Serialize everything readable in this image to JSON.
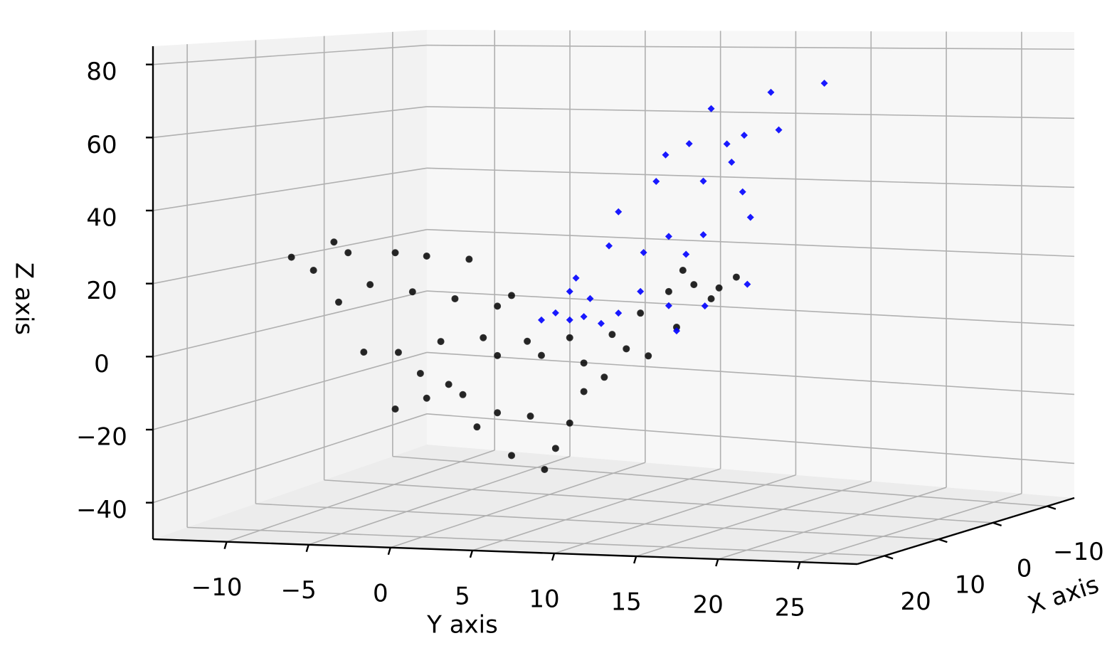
{
  "chart_data": {
    "type": "scatter3d",
    "xlabel": "X axis",
    "ylabel": "Y axis",
    "zlabel": "Z axis",
    "xlim": [
      -15,
      25
    ],
    "ylim": [
      -14.5,
      28.5
    ],
    "zlim": [
      -50,
      85
    ],
    "xticks": [
      {
        "value": -10,
        "label": "−10"
      },
      0,
      10,
      20
    ],
    "yticks": [
      {
        "value": -10,
        "label": "−10"
      },
      {
        "value": -5,
        "label": "−5"
      },
      0,
      5,
      10,
      15,
      20,
      25
    ],
    "zticks": [
      {
        "value": -40,
        "label": "−40"
      },
      {
        "value": -20,
        "label": "−20"
      },
      0,
      20,
      40,
      60,
      80
    ],
    "grid": true,
    "series": [
      {
        "color": "#000000",
        "marker": "circle",
        "x": [
          12,
          5,
          5,
          5,
          5,
          5,
          5,
          5,
          5,
          5,
          5,
          5,
          5,
          5,
          5,
          5,
          5,
          5,
          5,
          5,
          5,
          5,
          5,
          5,
          5,
          5,
          5,
          5,
          5,
          5,
          5,
          5,
          5,
          5,
          5,
          5,
          5,
          5,
          5,
          5,
          5,
          5,
          5,
          5,
          5,
          5,
          5
        ],
        "y": [
          -11.4,
          -11.7,
          -10.8,
          -13.0,
          -11.4,
          -7.8,
          -5.8,
          -3.1,
          -9.4,
          -6.7,
          -4.0,
          -1.3,
          -0.4,
          -9.8,
          -7.6,
          -4.9,
          -2.2,
          0.6,
          3.3,
          6.0,
          7.8,
          9.6,
          11.2,
          10.5,
          13.9,
          12.8,
          -1.3,
          1.5,
          4.2,
          6.9,
          -7.8,
          -5.8,
          -3.5,
          -1.3,
          0.8,
          -0.4,
          1.7,
          2.4,
          3.3,
          4.2,
          5.5,
          -2.6,
          -4.4,
          -6.2,
          8.3,
          10.1,
          12.3
        ],
        "z": [
          22.5,
          24.4,
          21.3,
          16.0,
          6.7,
          21.4,
          20.5,
          19.7,
          12.0,
          10.1,
          8.3,
          6.4,
          9.5,
          -7.8,
          -7.6,
          -4.1,
          -2.7,
          -3.4,
          -2.1,
          -0.9,
          5.2,
          11.3,
          13.3,
          17.2,
          15.5,
          12.5,
          -7.7,
          -7.3,
          -9.1,
          -4.8,
          -24.1,
          -20.6,
          -19.2,
          -24.0,
          -24.6,
          -36.0,
          -39.5,
          -33.4,
          -26.1,
          -17.1,
          -12.9,
          -28.3,
          -16.4,
          -13.5,
          -6.6,
          1.5,
          9.5
        ]
      },
      {
        "color": "#0000ff",
        "marker": "diamond",
        "x": [
          5,
          5,
          5,
          5,
          5,
          5,
          5,
          5,
          5,
          5,
          5,
          5,
          5,
          5,
          5,
          5,
          5,
          5,
          5,
          5,
          5,
          5,
          5,
          5,
          5,
          5,
          5,
          5,
          5,
          5,
          5,
          5,
          5
        ],
        "y": [
          19.5,
          16.1,
          12.3,
          16.6,
          14.4,
          10.9,
          9.4,
          13.3,
          13.6,
          8.8,
          11.8,
          14.3,
          6.4,
          14.8,
          9.6,
          11.8,
          8.0,
          10.7,
          5.8,
          3.3,
          4.6,
          2.4,
          3.3,
          4.2,
          5.3,
          1.5,
          6.4,
          7.8,
          9.6,
          11.9,
          14.6,
          3.7,
          10.1
        ],
        "z": [
          67.7,
          65.6,
          61.5,
          55.4,
          54.1,
          52.0,
          49.0,
          51.8,
          46.8,
          41.7,
          41.7,
          38.7,
          33.3,
          31.8,
          26.5,
          27.0,
          22.0,
          21.6,
          23.8,
          10.9,
          9.0,
          4.8,
          2.9,
          3.9,
          2.1,
          2.7,
          5.1,
          11.2,
          7.4,
          7.5,
          13.6,
          14.7,
          0.5
        ]
      }
    ]
  }
}
